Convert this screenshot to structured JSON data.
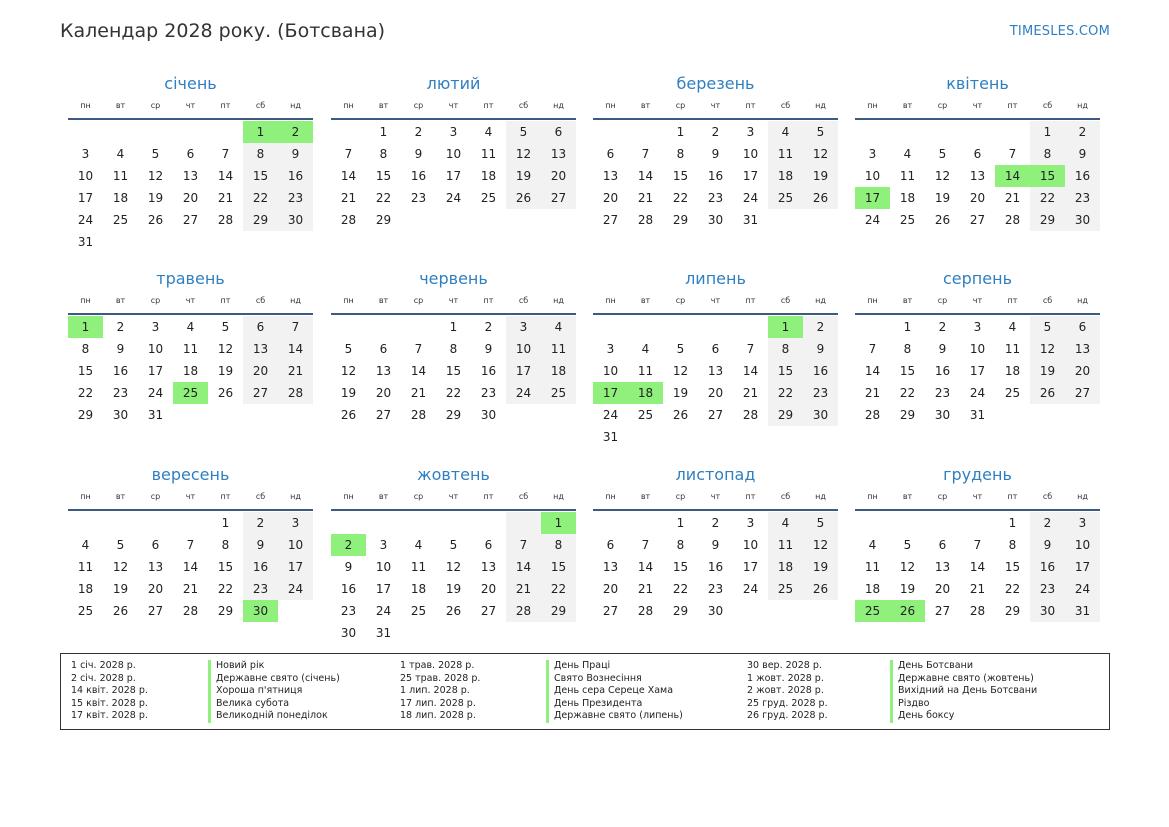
{
  "header": {
    "title": "Календар 2028 року. (Ботсвана)",
    "site": "TIMESLES.COM"
  },
  "weekdays": [
    "пн",
    "вт",
    "ср",
    "чт",
    "пт",
    "сб",
    "нд"
  ],
  "months": [
    {
      "name": "січень",
      "offset": 5,
      "days": 31,
      "holidays": [
        1,
        2
      ]
    },
    {
      "name": "лютий",
      "offset": 1,
      "days": 29,
      "holidays": []
    },
    {
      "name": "березень",
      "offset": 2,
      "days": 31,
      "holidays": []
    },
    {
      "name": "квітень",
      "offset": 5,
      "days": 30,
      "holidays": [
        14,
        15,
        17
      ]
    },
    {
      "name": "травень",
      "offset": 0,
      "days": 31,
      "holidays": [
        1,
        25
      ]
    },
    {
      "name": "червень",
      "offset": 3,
      "days": 30,
      "holidays": []
    },
    {
      "name": "липень",
      "offset": 5,
      "days": 31,
      "holidays": [
        1,
        17,
        18
      ]
    },
    {
      "name": "серпень",
      "offset": 1,
      "days": 31,
      "holidays": []
    },
    {
      "name": "вересень",
      "offset": 4,
      "days": 30,
      "holidays": [
        30
      ]
    },
    {
      "name": "жовтень",
      "offset": 6,
      "days": 31,
      "holidays": [
        1,
        2
      ]
    },
    {
      "name": "листопад",
      "offset": 2,
      "days": 30,
      "holidays": []
    },
    {
      "name": "грудень",
      "offset": 4,
      "days": 31,
      "holidays": [
        25,
        26
      ]
    }
  ],
  "holiday_list": [
    [
      {
        "date": "1 січ. 2028 р.",
        "name": "Новий рік"
      },
      {
        "date": "2 січ. 2028 р.",
        "name": "Державне свято (січень)"
      },
      {
        "date": "14 квіт. 2028 р.",
        "name": "Хороша п'ятниця"
      },
      {
        "date": "15 квіт. 2028 р.",
        "name": "Велика субота"
      },
      {
        "date": "17 квіт. 2028 р.",
        "name": "Великодній понеділок"
      }
    ],
    [
      {
        "date": "1 трав. 2028 р.",
        "name": "День Праці"
      },
      {
        "date": "25 трав. 2028 р.",
        "name": "Свято Вознесіння"
      },
      {
        "date": "1 лип. 2028 р.",
        "name": "День сера Сереце Хама"
      },
      {
        "date": "17 лип. 2028 р.",
        "name": "День Президента"
      },
      {
        "date": "18 лип. 2028 р.",
        "name": "Державне свято (липень)"
      }
    ],
    [
      {
        "date": "30 вер. 2028 р.",
        "name": "День Ботсвани"
      },
      {
        "date": "1 жовт. 2028 р.",
        "name": "Державне свято (жовтень)"
      },
      {
        "date": "2 жовт. 2028 р.",
        "name": "Вихідний на День Ботсвани"
      },
      {
        "date": "25 груд. 2028 р.",
        "name": "Різдво"
      },
      {
        "date": "26 груд. 2028 р.",
        "name": "День боксу"
      }
    ]
  ],
  "colors": {
    "accent": "#2f7fc1",
    "holiday": "#90f07c",
    "weekend": "#f2f2f2",
    "rule": "#3d5a80"
  }
}
